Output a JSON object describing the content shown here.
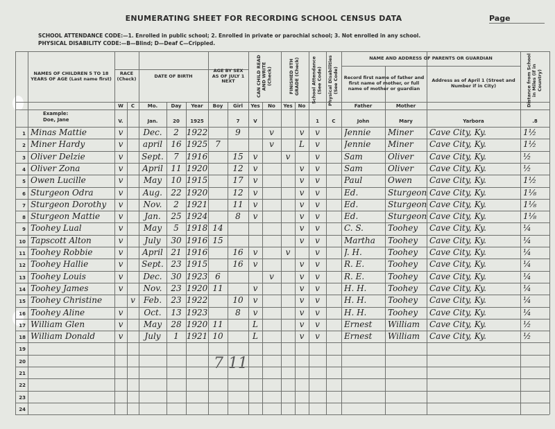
{
  "header": {
    "title": "ENUMERATING SHEET FOR RECORDING SCHOOL CENSUS DATA",
    "page_label": "Page",
    "attendance_code": "SCHOOL ATTENDANCE CODE:—1. Enrolled in public school; 2. Enrolled in private or parochial school; 3. Not enrolled in any school.",
    "disability_code": "PHYSICAL DISABILITY CODE:—B—Blind; D—Deaf  C—Crippled."
  },
  "columns": {
    "names": "NAMES OF CHILDREN 5 TO 18 YEARS OF AGE (Last name first)",
    "race": "RACE (Check)",
    "birth": "DATE OF BIRTH",
    "age": "AGE BY SEX AS OF JULY 1 NEXT",
    "read_write": "CAN CHILD READ AND WRITE (Check)",
    "finished": "FINISHED 8TH GRADE (Check)",
    "attendance": "School Attendance (See Code)",
    "disabilities": "Physical Disabilities (See Code)",
    "parents": "NAME AND ADDRESS OF PARENTS OR GUARDIAN",
    "parents_note": "Record first name of father and first name of mother, or full name of mother or guardian",
    "address": "Address as of April 1 (Street and Number if in City)",
    "distance": "Distance from School in Miles (if in Country)"
  },
  "subheaders": [
    "W",
    "C",
    "Mo.",
    "Day",
    "Year",
    "Boy",
    "Girl",
    "Yes",
    "No",
    "Yes",
    "No",
    null,
    null,
    "Father",
    "Mother",
    null,
    null
  ],
  "example": {
    "label": "Example:",
    "name": "Doe, Jane",
    "cells": [
      "V.",
      null,
      "Jan.",
      "20",
      "1925",
      null,
      "7",
      "V",
      null,
      null,
      null,
      "1",
      "C",
      "John",
      "Mary",
      "Yarbora",
      ".8"
    ]
  },
  "rows": [
    {
      "number": 1,
      "cells": [
        "Minas Mattie",
        "v",
        null,
        "Dec.",
        "2",
        "1922",
        null,
        "9",
        null,
        "v",
        null,
        "v",
        "v",
        null,
        "Jennie",
        "Miner",
        "Cave City, Ky.",
        "1½"
      ]
    },
    {
      "number": 2,
      "cells": [
        "Miner Hardy",
        "v",
        null,
        "april",
        "16",
        "1925",
        "7",
        null,
        null,
        "v",
        null,
        "L",
        "v",
        null,
        "Jennie",
        "Miner",
        "Cave City, Ky.",
        "1½"
      ]
    },
    {
      "number": 3,
      "cells": [
        "Oliver Delzie",
        "v",
        null,
        "Sept.",
        "7",
        "1916",
        null,
        "15",
        "v",
        null,
        "v",
        null,
        "v",
        null,
        "Sam",
        "Oliver",
        "Cave City, Ky.",
        "½"
      ]
    },
    {
      "number": 4,
      "cells": [
        "Oliver Zona",
        "v",
        null,
        "April",
        "11",
        "1920",
        null,
        "12",
        "v",
        null,
        null,
        "v",
        "v",
        null,
        "Sam",
        "Oliver",
        "Cave City, Ky.",
        "½"
      ]
    },
    {
      "number": 5,
      "cells": [
        "Owen Lucille",
        "v",
        null,
        "May",
        "10",
        "1915",
        null,
        "17",
        "v",
        null,
        null,
        "v",
        "v",
        null,
        "Paul",
        "Owen",
        "Cave City, Ky.",
        "1½"
      ]
    },
    {
      "number": 6,
      "cells": [
        "Sturgeon Odra",
        "v",
        null,
        "Aug.",
        "22",
        "1920",
        null,
        "12",
        "v",
        null,
        null,
        "v",
        "v",
        null,
        "Ed.",
        "Sturgeon",
        "Cave City, Ky.",
        "1⅛"
      ]
    },
    {
      "number": 7,
      "cells": [
        "Sturgeon Dorothy",
        "v",
        null,
        "Nov.",
        "2",
        "1921",
        null,
        "11",
        "v",
        null,
        null,
        "v",
        "v",
        null,
        "Ed.",
        "Sturgeon",
        "Cave City, Ky.",
        "1⅛"
      ]
    },
    {
      "number": 8,
      "cells": [
        "Sturgeon Mattie",
        "v",
        null,
        "Jan.",
        "25",
        "1924",
        null,
        "8",
        "v",
        null,
        null,
        "v",
        "v",
        null,
        "Ed.",
        "Sturgeon",
        "Cave City, Ky.",
        "1⅛"
      ]
    },
    {
      "number": 9,
      "cells": [
        "Toohey Lual",
        "v",
        null,
        "May",
        "5",
        "1918",
        "14",
        null,
        null,
        null,
        null,
        "v",
        "v",
        null,
        "C. S.",
        "Toohey",
        "Cave City, Ky.",
        "¼"
      ]
    },
    {
      "number": 10,
      "cells": [
        "Tapscott Alton",
        "v",
        null,
        "July",
        "30",
        "1916",
        "15",
        null,
        null,
        null,
        null,
        "v",
        "v",
        null,
        "Martha",
        "Toohey",
        "Cave City, Ky.",
        "¼"
      ]
    },
    {
      "number": 11,
      "cells": [
        "Toohey Robbie",
        "v",
        null,
        "April",
        "21",
        "1916",
        null,
        "16",
        "v",
        null,
        "v",
        null,
        "v",
        null,
        "J. H.",
        "Toohey",
        "Cave City, Ky.",
        "¼"
      ]
    },
    {
      "number": 12,
      "cells": [
        "Toohey Hallie",
        "v",
        null,
        "Sept.",
        "23",
        "1915",
        null,
        "16",
        "v",
        null,
        null,
        "v",
        "v",
        null,
        "R. E.",
        "Toohey",
        "Cave City, Ky.",
        "¼"
      ]
    },
    {
      "number": 13,
      "cells": [
        "Toohey Louis",
        "v",
        null,
        "Dec.",
        "30",
        "1923",
        "6",
        null,
        null,
        "v",
        null,
        "v",
        "v",
        null,
        "R. E.",
        "Toohey",
        "Cave City, Ky.",
        "¼"
      ]
    },
    {
      "number": 14,
      "cells": [
        "Toohey James",
        "v",
        null,
        "Nov.",
        "23",
        "1920",
        "11",
        null,
        "v",
        null,
        null,
        "v",
        "v",
        null,
        "H. H.",
        "Toohey",
        "Cave City, Ky.",
        "¼"
      ]
    },
    {
      "number": 15,
      "cells": [
        "Toohey Christine",
        null,
        "v",
        "Feb.",
        "23",
        "1922",
        null,
        "10",
        "v",
        null,
        null,
        "v",
        "v",
        null,
        "H. H.",
        "Toohey",
        "Cave City, Ky.",
        "¼"
      ]
    },
    {
      "number": 16,
      "cells": [
        "Toohey Aline",
        "v",
        null,
        "Oct.",
        "13",
        "1923",
        null,
        "8",
        "v",
        null,
        null,
        "v",
        "v",
        null,
        "H. H.",
        "Toohey",
        "Cave City, Ky.",
        "¼"
      ]
    },
    {
      "number": 17,
      "cells": [
        "William Glen",
        "v",
        null,
        "May",
        "28",
        "1920",
        "11",
        null,
        "L",
        null,
        null,
        "v",
        "v",
        null,
        "Ernest",
        "William",
        "Cave City, Ky.",
        "½"
      ]
    },
    {
      "number": 18,
      "cells": [
        "William Donald",
        "v",
        null,
        "July",
        "1",
        "1921",
        "10",
        null,
        "L",
        null,
        null,
        "v",
        "v",
        null,
        "Ernest",
        "William",
        "Cave City, Ky.",
        "½"
      ]
    },
    {
      "number": 19
    },
    {
      "number": 20
    },
    {
      "number": 21
    },
    {
      "number": 22
    },
    {
      "number": 23
    },
    {
      "number": 24
    }
  ],
  "annotation": "7 11"
}
